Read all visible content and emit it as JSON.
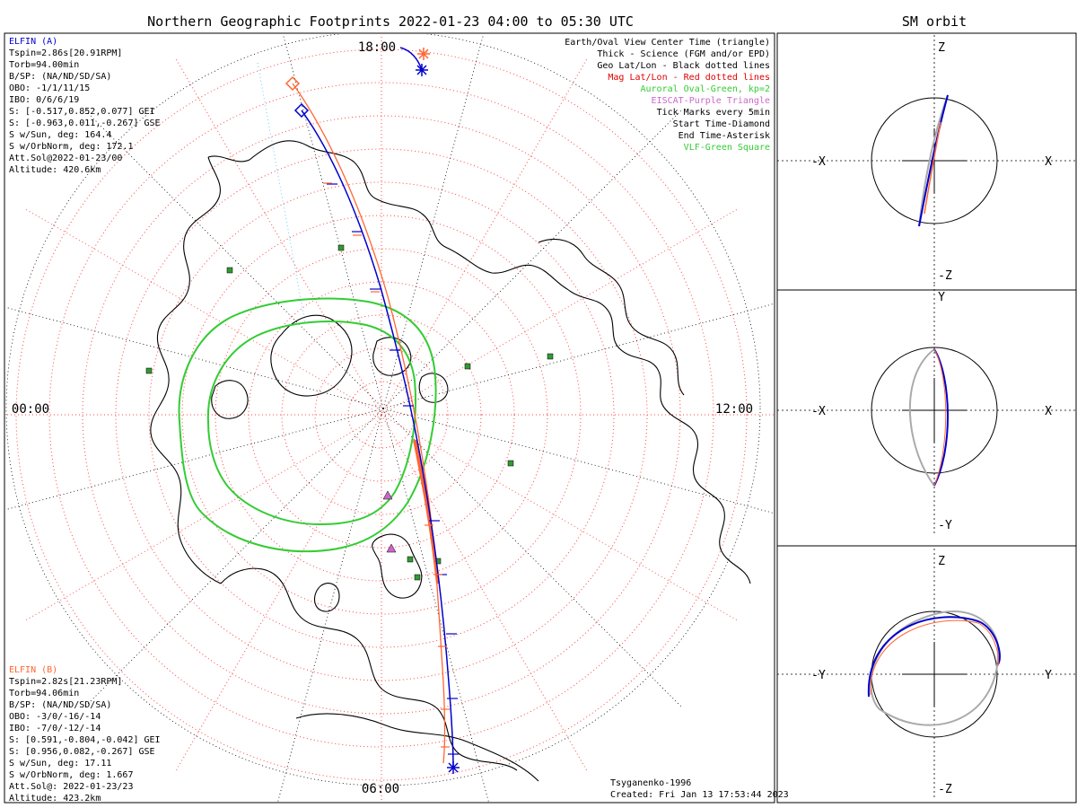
{
  "main_title": "Northern Geographic Footprints 2022-01-23 04:00 to 05:30 UTC",
  "side_title": "SM orbit",
  "clock_labels": {
    "top": "18:00",
    "left": "00:00",
    "right": "12:00",
    "bottom": "06:00"
  },
  "info_a": {
    "title": "ELFIN (A)",
    "lines": [
      "Tspin=2.86s[20.91RPM]",
      "Torb=94.00min",
      "B/SP: (NA/ND/SD/SA)",
      "OBO: -1/1/11/15",
      "IBO: 0/6/6/19",
      "S: [-0.517,0.852,0.077] GEI",
      "S: [-0.963,0.011,-0.267] GSE",
      "S w/Sun, deg: 164.4",
      "S w/OrbNorm, deg: 172.1",
      "Att.Sol@2022-01-23/00",
      "Altitude: 420.6km"
    ]
  },
  "info_b": {
    "title": "ELFIN (B)",
    "lines": [
      "Tspin=2.82s[21.23RPM]",
      "Torb=94.06min",
      "B/SP: (NA/ND/SD/SA)",
      "OBO: -3/0/-16/-14",
      "IBO: -7/0/-12/-14",
      "S: [0.591,-0.804,-0.042] GEI",
      "S: [0.956,0.082,-0.267] GSE",
      "S w/Sun, deg: 17.11",
      "S w/OrbNorm, deg: 1.667",
      "Att.Sol@: 2022-01-23/23",
      "Altitude: 423.2km"
    ]
  },
  "legend": [
    {
      "text": "Earth/Oval View Center Time (triangle)",
      "color": "#000000"
    },
    {
      "text": "Thick - Science (FGM and/or EPD)",
      "color": "#000000"
    },
    {
      "text": "Geo Lat/Lon - Black dotted lines",
      "color": "#000000"
    },
    {
      "text": "Mag Lat/Lon - Red dotted lines",
      "color": "#e00000"
    },
    {
      "text": "Auroral Oval-Green, kp=2",
      "color": "#33cc33"
    },
    {
      "text": "EISCAT-Purple Triangle",
      "color": "#cc66cc"
    },
    {
      "text": "Tick Marks every 5min",
      "color": "#000000"
    },
    {
      "text": "Start Time-Diamond",
      "color": "#000000"
    },
    {
      "text": "End Time-Asterisk",
      "color": "#000000"
    },
    {
      "text": "VLF-Green Square",
      "color": "#33cc33"
    }
  ],
  "footer": {
    "model": "Tsyganenko-1996",
    "created": "Created: Fri Jan 13 17:53:44 2023"
  },
  "colors": {
    "elfin_a": "#0000cc",
    "elfin_b": "#ff6633",
    "oval": "#33cc33",
    "geo_grid": "#000000",
    "mag_grid": "#ff4444",
    "eiscat": "#cc66cc",
    "vlf": "#339933",
    "orbit_shadow": "#aaaaaa"
  },
  "panels": [
    {
      "name": "xz",
      "h_neg": "-X",
      "h_pos": "X",
      "v_pos": "Z",
      "v_neg": "-Z"
    },
    {
      "name": "xy",
      "h_neg": "-X",
      "h_pos": "X",
      "v_pos": "Y",
      "v_neg": "-Y"
    },
    {
      "name": "yz",
      "h_neg": "-Y",
      "h_pos": "Y",
      "v_pos": "Z",
      "v_neg": "-Z"
    }
  ],
  "chart_data": {
    "type": "map",
    "projection": "north-polar",
    "title": "Northern Geographic Footprints 2022-01-23 04:00 to 05:30 UTC",
    "series": [
      {
        "name": "ELFIN (A)",
        "color": "#0000cc"
      },
      {
        "name": "ELFIN (B)",
        "color": "#ff6633"
      }
    ],
    "auroral_oval_kp": 2,
    "tick_interval": "5min"
  }
}
